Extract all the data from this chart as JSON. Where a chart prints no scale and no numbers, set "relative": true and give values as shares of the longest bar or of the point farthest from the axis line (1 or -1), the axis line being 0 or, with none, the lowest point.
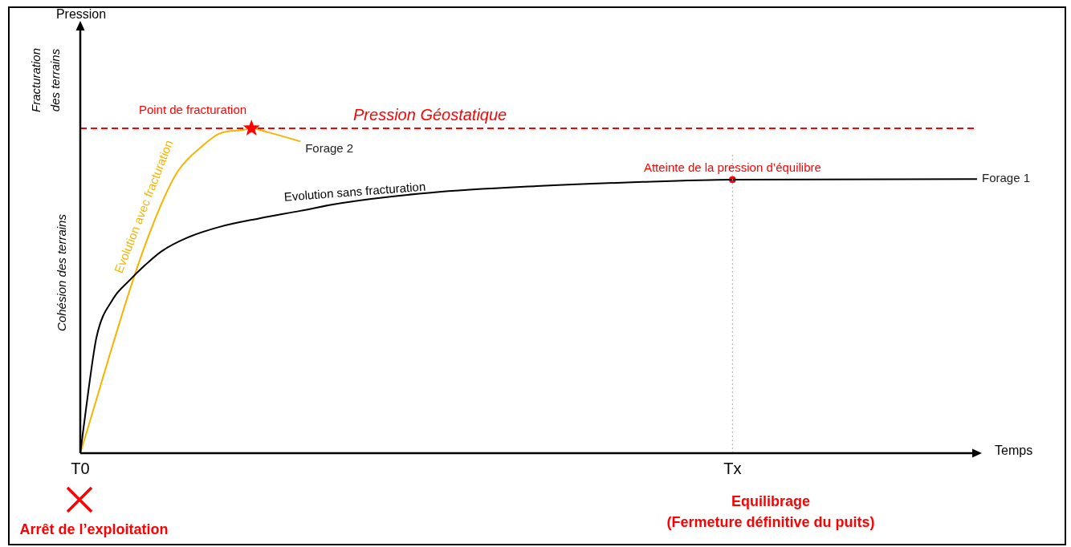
{
  "chart_data": {
    "type": "line",
    "relative": true,
    "xlabel": "Temps",
    "categories": [
      "T0",
      null,
      null,
      null,
      null,
      null,
      null,
      null,
      null,
      null,
      null,
      null,
      null,
      null,
      null,
      null,
      null,
      null,
      null,
      null,
      null,
      null,
      null,
      null,
      null,
      null,
      null,
      null,
      null,
      null,
      null,
      null,
      null,
      null,
      null,
      null,
      null,
      null,
      null,
      null,
      null,
      null,
      null,
      null,
      null,
      null,
      null,
      null,
      null,
      null,
      null,
      null,
      null,
      null,
      null,
      null,
      null,
      null,
      null,
      null,
      null,
      null,
      null,
      null,
      null,
      null,
      null,
      null,
      null,
      null,
      null,
      null,
      null,
      null,
      null,
      null,
      null,
      null,
      null,
      null,
      "Tx",
      null,
      null,
      null,
      null,
      null,
      null,
      null,
      null,
      null,
      null,
      null,
      null,
      null,
      null,
      null,
      null,
      null,
      null,
      null,
      null,
      null,
      null,
      null,
      null,
      null,
      null,
      null,
      null,
      null,
      null
    ],
    "grid": false,
    "legend": false,
    "marker": "none",
    "line_style": "solid",
    "series": [
      {
        "name": "Forage 1",
        "color": "#000000",
        "values": [
          0,
          0.193,
          0.358,
          null,
          0.474,
          null,
          0.531,
          null,
          0.58,
          null,
          0.622,
          null,
          null,
          0.662,
          null,
          null,
          null,
          0.696,
          null,
          null,
          null,
          null,
          0.723,
          null,
          null,
          null,
          null,
          0.746,
          null,
          null,
          null,
          null,
          0.77,
          null,
          null,
          null,
          null,
          null,
          null,
          null,
          null,
          null,
          null,
          0.802,
          null,
          null,
          null,
          null,
          null,
          null,
          null,
          null,
          null,
          null,
          null,
          null,
          0.822,
          null,
          null,
          null,
          null,
          null,
          null,
          null,
          null,
          null,
          null,
          null,
          null,
          0.835,
          null,
          null,
          null,
          null,
          null,
          null,
          null,
          null,
          null,
          null,
          0.842,
          null,
          null,
          null,
          null,
          null,
          null,
          null,
          null,
          null,
          null,
          null,
          null,
          null,
          null,
          null,
          null,
          null,
          null,
          null,
          null,
          null,
          null,
          null,
          null,
          null,
          null,
          null,
          null,
          null,
          0.844
        ]
      },
      {
        "name": "Forage 2",
        "color": "#f5b400",
        "values": [
          0,
          null,
          null,
          null,
          null,
          null,
          null,
          0.573,
          null,
          null,
          0.77,
          null,
          0.869,
          null,
          null,
          0.946,
          null,
          0.983,
          null,
          null,
          0.995,
          1,
          null,
          0.988,
          null,
          null,
          null,
          0.96,
          null,
          null,
          null,
          null,
          null,
          null,
          null,
          null,
          null,
          null,
          null,
          null,
          null,
          null,
          null,
          null,
          null,
          null,
          null,
          null,
          null,
          null,
          null,
          null,
          null,
          null,
          null,
          null,
          null,
          null,
          null,
          null,
          null,
          null,
          null,
          null,
          null,
          null,
          null,
          null,
          null,
          null,
          null,
          null,
          null,
          null,
          null,
          null,
          null,
          null,
          null,
          null,
          null,
          null,
          null,
          null,
          null,
          null,
          null,
          null,
          null,
          null,
          null,
          null,
          null,
          null,
          null,
          null,
          null,
          null,
          null,
          null,
          null,
          null,
          null,
          null,
          null,
          null,
          null,
          null,
          null,
          null,
          null
        ]
      },
      {
        "type": "scatter",
        "marker": "star",
        "color": "#ff0000",
        "values": [
          null,
          null,
          null,
          null,
          null,
          null,
          null,
          null,
          null,
          null,
          null,
          null,
          null,
          null,
          null,
          null,
          null,
          null,
          null,
          null,
          null,
          1,
          null,
          null,
          null,
          null,
          null,
          null,
          null,
          null,
          null,
          null,
          null,
          null,
          null,
          null,
          null,
          null,
          null,
          null,
          null,
          null,
          null,
          null,
          null,
          null,
          null,
          null,
          null,
          null,
          null,
          null,
          null,
          null,
          null,
          null,
          null,
          null,
          null,
          null,
          null,
          null,
          null,
          null,
          null,
          null,
          null,
          null,
          null,
          null,
          null,
          null,
          null,
          null,
          null,
          null,
          null,
          null,
          null,
          null,
          null,
          null,
          null,
          null,
          null,
          null,
          null,
          null,
          null,
          null,
          null,
          null,
          null,
          null,
          null,
          null,
          null,
          null,
          null,
          null,
          null,
          null,
          null,
          null,
          null,
          null,
          null,
          null,
          null,
          null,
          null
        ]
      },
      {
        "type": "scatter",
        "marker": "circle",
        "color": "#ff0000",
        "values": [
          null,
          null,
          null,
          null,
          null,
          null,
          null,
          null,
          null,
          null,
          null,
          null,
          null,
          null,
          null,
          null,
          null,
          null,
          null,
          null,
          null,
          null,
          null,
          null,
          null,
          null,
          null,
          null,
          null,
          null,
          null,
          null,
          null,
          null,
          null,
          null,
          null,
          null,
          null,
          null,
          null,
          null,
          null,
          null,
          null,
          null,
          null,
          null,
          null,
          null,
          null,
          null,
          null,
          null,
          null,
          null,
          null,
          null,
          null,
          null,
          null,
          null,
          null,
          null,
          null,
          null,
          null,
          null,
          null,
          null,
          null,
          null,
          null,
          null,
          null,
          null,
          null,
          null,
          null,
          null,
          0.842,
          null,
          null,
          null,
          null,
          null,
          null,
          null,
          null,
          null,
          null,
          null,
          null,
          null,
          null,
          null,
          null,
          null,
          null,
          null,
          null,
          null,
          null,
          null,
          null,
          null,
          null,
          null,
          null,
          null,
          null
        ]
      }
    ],
    "ref_lines": [
      {
        "axis": "y",
        "value": 1,
        "label": "Pression Géostatique",
        "color": "#ff0000",
        "line_style": "dashed"
      },
      {
        "axis": "x",
        "value": "Tx",
        "color": "#aaaaaa",
        "line_style": "dotted"
      }
    ],
    "annotations": [
      {
        "text": "Point de fracturation",
        "y": 1
      },
      {
        "text": "Atteinte de la pression d’équilibre",
        "x": "Tx",
        "y": 0.842
      },
      "Evolution sans fracturation",
      "Evolution avec fracturation",
      "Fracturation\ndes terrains",
      "Cohésion des terrains",
      "Arrêt de l’exploitation",
      "Equilibrage\n(Fermeture définitive du puits)",
      "Pression"
    ]
  }
}
